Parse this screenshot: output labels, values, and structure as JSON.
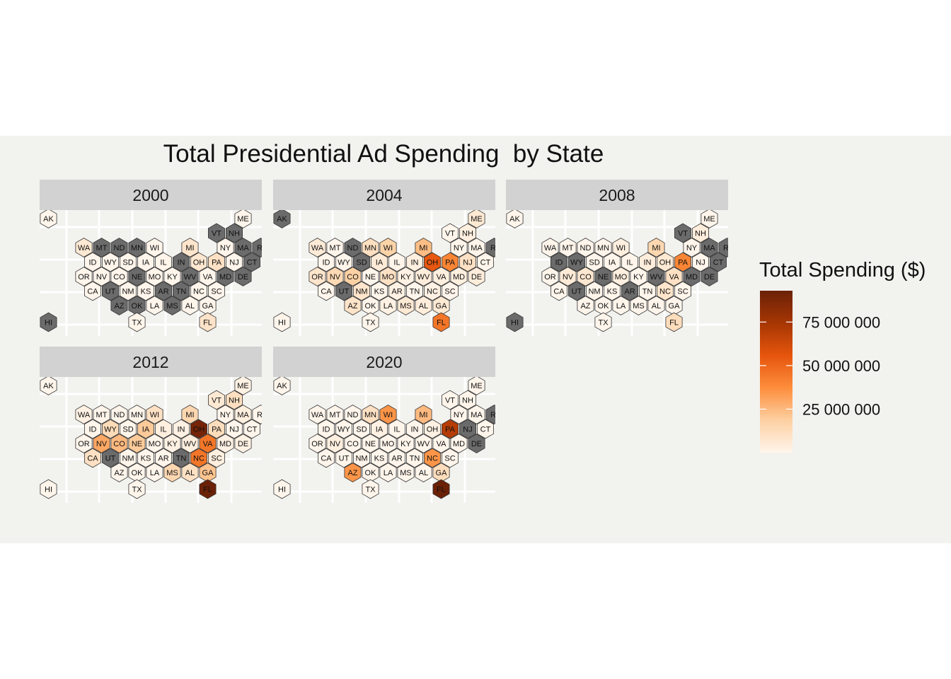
{
  "chart_data": {
    "type": "heatmap",
    "title": "Total Presidential Ad Spending  by State",
    "legend": {
      "title": "Total Spending ($)",
      "position": "right",
      "ticks": [
        25000000,
        50000000,
        75000000
      ],
      "tick_labels": [
        "25 000 000",
        "50 000 000",
        "75 000 000"
      ],
      "range": [
        0,
        93000000
      ],
      "colors": [
        "#fff5eb",
        "#fdd0a2",
        "#fd8d3c",
        "#e6550d",
        "#a63603",
        "#6b2108"
      ],
      "na_color": "#6b6b6b"
    },
    "layout": [
      {
        "state": "AK",
        "row": 0,
        "col": 0.5
      },
      {
        "state": "ME",
        "row": 0,
        "col": 11.5
      },
      {
        "state": "VT",
        "row": 1,
        "col": 10
      },
      {
        "state": "NH",
        "row": 1,
        "col": 11
      },
      {
        "state": "WA",
        "row": 2,
        "col": 2.5
      },
      {
        "state": "MT",
        "row": 2,
        "col": 3.5
      },
      {
        "state": "ND",
        "row": 2,
        "col": 4.5
      },
      {
        "state": "MN",
        "row": 2,
        "col": 5.5
      },
      {
        "state": "WI",
        "row": 2,
        "col": 6.5
      },
      {
        "state": "MI",
        "row": 2,
        "col": 8.5
      },
      {
        "state": "NY",
        "row": 2,
        "col": 10.5
      },
      {
        "state": "MA",
        "row": 2,
        "col": 11.5
      },
      {
        "state": "RI",
        "row": 2,
        "col": 12.5
      },
      {
        "state": "ID",
        "row": 3,
        "col": 3
      },
      {
        "state": "WY",
        "row": 3,
        "col": 4
      },
      {
        "state": "SD",
        "row": 3,
        "col": 5
      },
      {
        "state": "IA",
        "row": 3,
        "col": 6
      },
      {
        "state": "IL",
        "row": 3,
        "col": 7
      },
      {
        "state": "IN",
        "row": 3,
        "col": 8
      },
      {
        "state": "OH",
        "row": 3,
        "col": 9
      },
      {
        "state": "PA",
        "row": 3,
        "col": 10
      },
      {
        "state": "NJ",
        "row": 3,
        "col": 11
      },
      {
        "state": "CT",
        "row": 3,
        "col": 12
      },
      {
        "state": "OR",
        "row": 4,
        "col": 2.5
      },
      {
        "state": "NV",
        "row": 4,
        "col": 3.5
      },
      {
        "state": "CO",
        "row": 4,
        "col": 4.5
      },
      {
        "state": "NE",
        "row": 4,
        "col": 5.5
      },
      {
        "state": "MO",
        "row": 4,
        "col": 6.5
      },
      {
        "state": "KY",
        "row": 4,
        "col": 7.5
      },
      {
        "state": "WV",
        "row": 4,
        "col": 8.5
      },
      {
        "state": "VA",
        "row": 4,
        "col": 9.5
      },
      {
        "state": "MD",
        "row": 4,
        "col": 10.5
      },
      {
        "state": "DE",
        "row": 4,
        "col": 11.5
      },
      {
        "state": "CA",
        "row": 5,
        "col": 3
      },
      {
        "state": "UT",
        "row": 5,
        "col": 4
      },
      {
        "state": "NM",
        "row": 5,
        "col": 5
      },
      {
        "state": "KS",
        "row": 5,
        "col": 6
      },
      {
        "state": "AR",
        "row": 5,
        "col": 7
      },
      {
        "state": "TN",
        "row": 5,
        "col": 8
      },
      {
        "state": "NC",
        "row": 5,
        "col": 9
      },
      {
        "state": "SC",
        "row": 5,
        "col": 10
      },
      {
        "state": "AZ",
        "row": 6,
        "col": 4.5
      },
      {
        "state": "OK",
        "row": 6,
        "col": 5.5
      },
      {
        "state": "LA",
        "row": 6,
        "col": 6.5
      },
      {
        "state": "MS",
        "row": 6,
        "col": 7.5
      },
      {
        "state": "AL",
        "row": 6,
        "col": 8.5
      },
      {
        "state": "GA",
        "row": 6,
        "col": 9.5
      },
      {
        "state": "HI",
        "row": 7,
        "col": 0.5
      },
      {
        "state": "TX",
        "row": 7,
        "col": 5.5
      },
      {
        "state": "FL",
        "row": 7,
        "col": 9.5
      }
    ],
    "facets": [
      {
        "year": "2000",
        "values": {
          "AK": 0,
          "ME": 0,
          "VT": null,
          "NH": null,
          "WA": 6000000,
          "MT": null,
          "ND": null,
          "MN": null,
          "WI": 0,
          "MI": 8000000,
          "NY": 0,
          "MA": null,
          "RI": null,
          "ID": 0,
          "WY": 0,
          "SD": 0,
          "IA": 0,
          "IL": 0,
          "IN": null,
          "OH": 7000000,
          "PA": 10000000,
          "NJ": 0,
          "CT": null,
          "OR": 0,
          "NV": 0,
          "CO": 0,
          "NE": null,
          "MO": 0,
          "KY": 0,
          "WV": null,
          "VA": 0,
          "MD": null,
          "DE": null,
          "CA": 0,
          "UT": null,
          "NM": 0,
          "KS": 0,
          "AR": null,
          "TN": null,
          "NC": 0,
          "SC": 0,
          "AZ": null,
          "OK": null,
          "LA": 0,
          "MS": null,
          "AL": 0,
          "GA": 0,
          "HI": null,
          "TX": 0,
          "FL": 9000000
        }
      },
      {
        "year": "2004",
        "values": {
          "AK": null,
          "ME": 6000000,
          "VT": 0,
          "NH": 3000000,
          "WA": 5000000,
          "MT": 0,
          "ND": null,
          "MN": 11000000,
          "WI": 17000000,
          "MI": 24000000,
          "NY": 0,
          "MA": 0,
          "RI": null,
          "ID": 0,
          "WY": 0,
          "SD": null,
          "IA": 5000000,
          "IL": 0,
          "IN": 3000000,
          "OH": 55000000,
          "PA": 40000000,
          "NJ": 10000000,
          "CT": 0,
          "OR": 8000000,
          "NV": 14000000,
          "CO": 18000000,
          "NE": 0,
          "MO": 10000000,
          "KY": 2000000,
          "WV": 4000000,
          "VA": 3000000,
          "MD": 3000000,
          "DE": 4000000,
          "CA": 0,
          "UT": null,
          "NM": 8000000,
          "KS": 0,
          "AR": 2000000,
          "TN": 0,
          "NC": 2000000,
          "SC": 0,
          "AZ": 9000000,
          "OK": 0,
          "LA": 2000000,
          "MS": 6000000,
          "AL": 4000000,
          "GA": 6000000,
          "HI": 0,
          "TX": 0,
          "FL": 45000000
        }
      },
      {
        "year": "2008",
        "values": {
          "AK": 0,
          "ME": 0,
          "VT": null,
          "NH": 4000000,
          "WA": 0,
          "MT": 0,
          "ND": 0,
          "MN": 0,
          "WI": 3000000,
          "MI": 15000000,
          "NY": 0,
          "MA": null,
          "RI": null,
          "ID": null,
          "WY": null,
          "SD": 0,
          "IA": 0,
          "IL": 0,
          "IN": 4000000,
          "OH": 6000000,
          "PA": 40000000,
          "NJ": 0,
          "CT": null,
          "OR": 0,
          "NV": 5000000,
          "CO": 7000000,
          "NE": null,
          "MO": 3000000,
          "KY": 0,
          "WV": null,
          "VA": 10000000,
          "MD": null,
          "DE": null,
          "CA": 0,
          "UT": null,
          "NM": 0,
          "KS": 0,
          "AR": null,
          "TN": 0,
          "NC": 8000000,
          "SC": 0,
          "AZ": 0,
          "OK": 0,
          "LA": 0,
          "MS": 0,
          "AL": 0,
          "GA": 0,
          "HI": null,
          "TX": 0,
          "FL": 12000000
        }
      },
      {
        "year": "2012",
        "values": {
          "AK": 0,
          "ME": 2000000,
          "VT": 6000000,
          "NH": 11000000,
          "WA": 2000000,
          "MT": 0,
          "ND": 0,
          "MN": 0,
          "WI": 10000000,
          "MI": 15000000,
          "NY": 0,
          "MA": 3000000,
          "RI": 0,
          "ID": 0,
          "WY": 13000000,
          "SD": 0,
          "IA": 20000000,
          "IL": 3000000,
          "IN": 2000000,
          "OH": 90000000,
          "PA": 12000000,
          "NJ": 0,
          "CT": 0,
          "OR": 0,
          "NV": 30000000,
          "CO": 25000000,
          "NE": 20000000,
          "MO": 0,
          "KY": 2000000,
          "WV": 3000000,
          "VA": 45000000,
          "MD": 2000000,
          "DE": 2000000,
          "CA": 10000000,
          "UT": null,
          "NM": 0,
          "KS": 0,
          "AR": 0,
          "TN": null,
          "NC": 45000000,
          "SC": 3000000,
          "AZ": 0,
          "OK": 0,
          "LA": 0,
          "MS": 15000000,
          "AL": 10000000,
          "GA": 22000000,
          "HI": 0,
          "TX": 0,
          "FL": 93000000
        }
      },
      {
        "year": "2020",
        "values": {
          "AK": 0,
          "ME": 0,
          "VT": 0,
          "NH": 0,
          "WA": 0,
          "MT": 0,
          "ND": 0,
          "MN": 10000000,
          "WI": 35000000,
          "MI": 25000000,
          "NY": 0,
          "MA": 0,
          "RI": null,
          "ID": 0,
          "WY": 0,
          "SD": 0,
          "IA": 2000000,
          "IL": 0,
          "IN": 0,
          "OH": 2000000,
          "PA": 70000000,
          "NJ": null,
          "CT": 0,
          "OR": 0,
          "NV": 3000000,
          "CO": 0,
          "NE": 0,
          "MO": 0,
          "KY": 0,
          "WV": 0,
          "VA": 0,
          "MD": 0,
          "DE": null,
          "CA": 0,
          "UT": 0,
          "NM": 0,
          "KS": 0,
          "AR": 0,
          "TN": 0,
          "NC": 35000000,
          "SC": 0,
          "AZ": 35000000,
          "OK": 0,
          "LA": 0,
          "MS": 0,
          "AL": 0,
          "GA": 12000000,
          "HI": 0,
          "TX": 0,
          "FL": 93000000
        }
      }
    ]
  }
}
